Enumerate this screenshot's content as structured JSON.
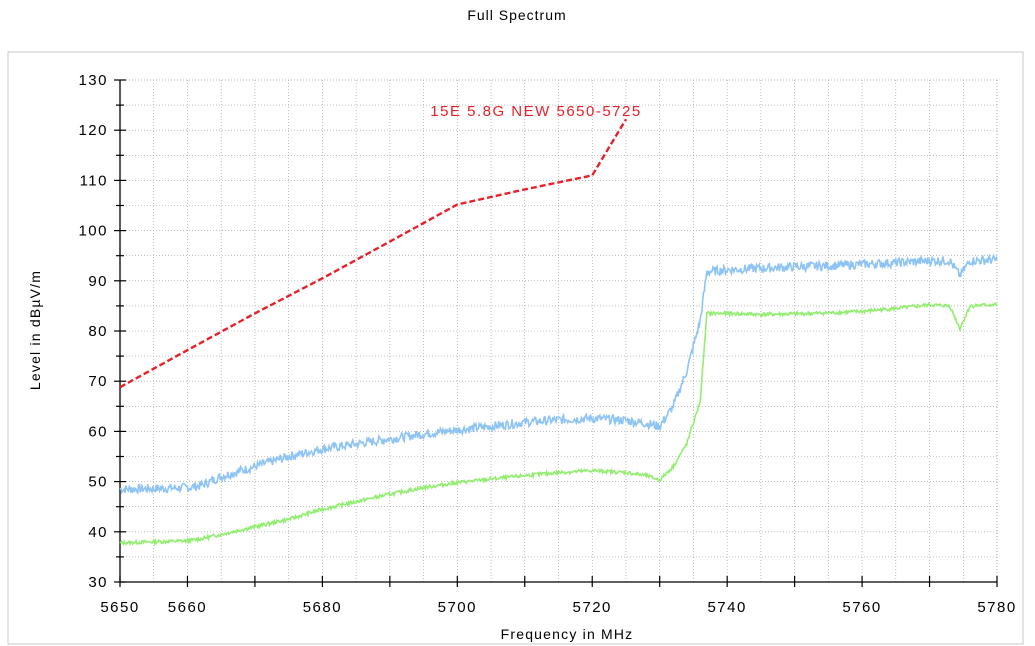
{
  "chart_data": {
    "type": "line",
    "title": "Full Spectrum",
    "xlabel": "Frequency in MHz",
    "ylabel": "Level in dBµV/m",
    "xlim": [
      5650,
      5780
    ],
    "ylim": [
      30,
      130
    ],
    "x_ticks": [
      5650,
      5660,
      5680,
      5700,
      5720,
      5740,
      5760,
      5780
    ],
    "y_ticks": [
      30,
      40,
      50,
      60,
      70,
      80,
      90,
      100,
      110,
      120,
      130
    ],
    "grid": true,
    "colors": {
      "limit": "#e8202a",
      "peak": "#8ec4f4",
      "avg": "#92ee70",
      "grid": "#9a9a9a",
      "axis": "#000000"
    },
    "limit_label": "15E 5.8G NEW 5650-5725",
    "series": [
      {
        "key": "limit",
        "style": "dashed",
        "x": [
          5650,
          5660,
          5670,
          5680,
          5690,
          5700,
          5710,
          5720,
          5725
        ],
        "values": [
          68.8,
          76.2,
          83.5,
          90.5,
          97.8,
          105.2,
          108.2,
          111.0,
          122.2
        ]
      },
      {
        "key": "peak",
        "style": "solid",
        "x": [
          5650,
          5655,
          5660,
          5662,
          5665,
          5670,
          5675,
          5680,
          5685,
          5690,
          5695,
          5700,
          5705,
          5710,
          5715,
          5720,
          5725,
          5728,
          5730,
          5732,
          5734,
          5736,
          5737,
          5740,
          5745,
          5750,
          5755,
          5760,
          5765,
          5770,
          5773,
          5774.5,
          5776,
          5780
        ],
        "values": [
          48.5,
          48.6,
          48.8,
          49.2,
          51.0,
          53.0,
          55.0,
          56.5,
          57.5,
          58.5,
          59.5,
          60.3,
          61.0,
          61.8,
          62.3,
          62.6,
          62.2,
          61.6,
          61.0,
          65.0,
          72.0,
          82.0,
          91.8,
          92.2,
          92.5,
          92.8,
          93.0,
          93.3,
          93.6,
          94.0,
          94.0,
          91.0,
          94.0,
          94.2
        ]
      },
      {
        "key": "avg",
        "style": "solid",
        "x": [
          5650,
          5655,
          5660,
          5662,
          5665,
          5670,
          5675,
          5680,
          5685,
          5690,
          5695,
          5700,
          5705,
          5710,
          5715,
          5720,
          5725,
          5728,
          5730,
          5732,
          5734,
          5736,
          5737,
          5740,
          5745,
          5750,
          5755,
          5760,
          5765,
          5770,
          5773,
          5774.5,
          5776,
          5780
        ],
        "values": [
          37.8,
          38.0,
          38.2,
          38.6,
          39.5,
          41.0,
          42.5,
          44.5,
          46.0,
          47.5,
          48.8,
          49.8,
          50.5,
          51.2,
          51.8,
          52.2,
          51.8,
          51.2,
          50.3,
          53.0,
          57.5,
          66.0,
          83.5,
          83.5,
          83.3,
          83.4,
          83.6,
          83.9,
          84.5,
          85.2,
          85.0,
          80.5,
          85.0,
          85.3
        ]
      }
    ]
  }
}
